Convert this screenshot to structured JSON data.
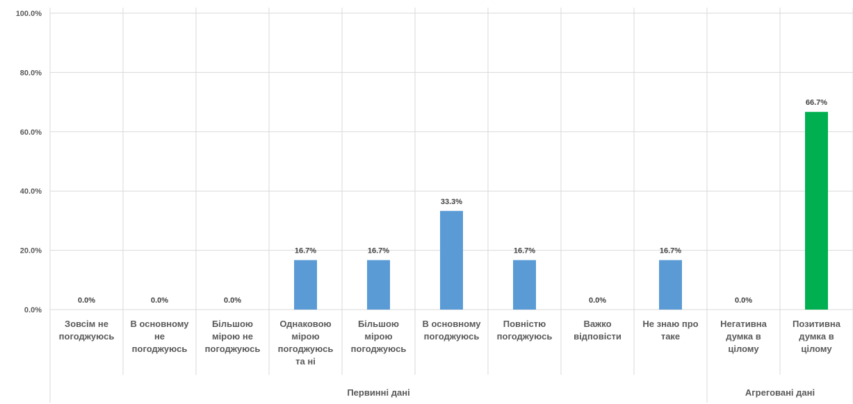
{
  "chart_data": {
    "type": "bar",
    "categories": [
      [
        "Зовсім не",
        "погоджуюсь"
      ],
      [
        "В основному",
        "не",
        "погоджуюсь"
      ],
      [
        "Більшою",
        "мірою не",
        "погоджуюсь"
      ],
      [
        "Однаковою",
        "мірою",
        "погоджуюсь",
        "та ні"
      ],
      [
        "Більшою",
        "мірою",
        "погоджуюсь"
      ],
      [
        "В основному",
        "погоджуюсь"
      ],
      [
        "Повністю",
        "погоджуюсь"
      ],
      [
        "Важко",
        "відповісти"
      ],
      [
        "Не знаю про",
        "таке"
      ],
      [
        "Негативна",
        "думка в",
        "цілому"
      ],
      [
        "Позитивна",
        "думка в",
        "цілому"
      ]
    ],
    "values": [
      0.0,
      0.0,
      0.0,
      16.7,
      16.7,
      33.3,
      16.7,
      0.0,
      16.7,
      0.0,
      66.7
    ],
    "data_labels": [
      "0.0%",
      "0.0%",
      "0.0%",
      "16.7%",
      "16.7%",
      "33.3%",
      "16.7%",
      "0.0%",
      "16.7%",
      "0.0%",
      "66.7%"
    ],
    "groups": [
      {
        "label": "Первинні дані",
        "count": 9
      },
      {
        "label": "Агреговані дані",
        "count": 2
      }
    ],
    "ylim": [
      0,
      100
    ],
    "yticks": [
      0,
      20,
      40,
      60,
      80,
      100
    ],
    "ytick_labels": [
      "0.0%",
      "20.0%",
      "40.0%",
      "60.0%",
      "80.0%",
      "100.0%"
    ],
    "colors": {
      "primary": "#5B9BD5",
      "aggregated_positive": "#00B050",
      "grid": "#D9D9D9"
    },
    "grid": true,
    "legend": "none",
    "title": "",
    "xlabel": "",
    "ylabel": ""
  }
}
